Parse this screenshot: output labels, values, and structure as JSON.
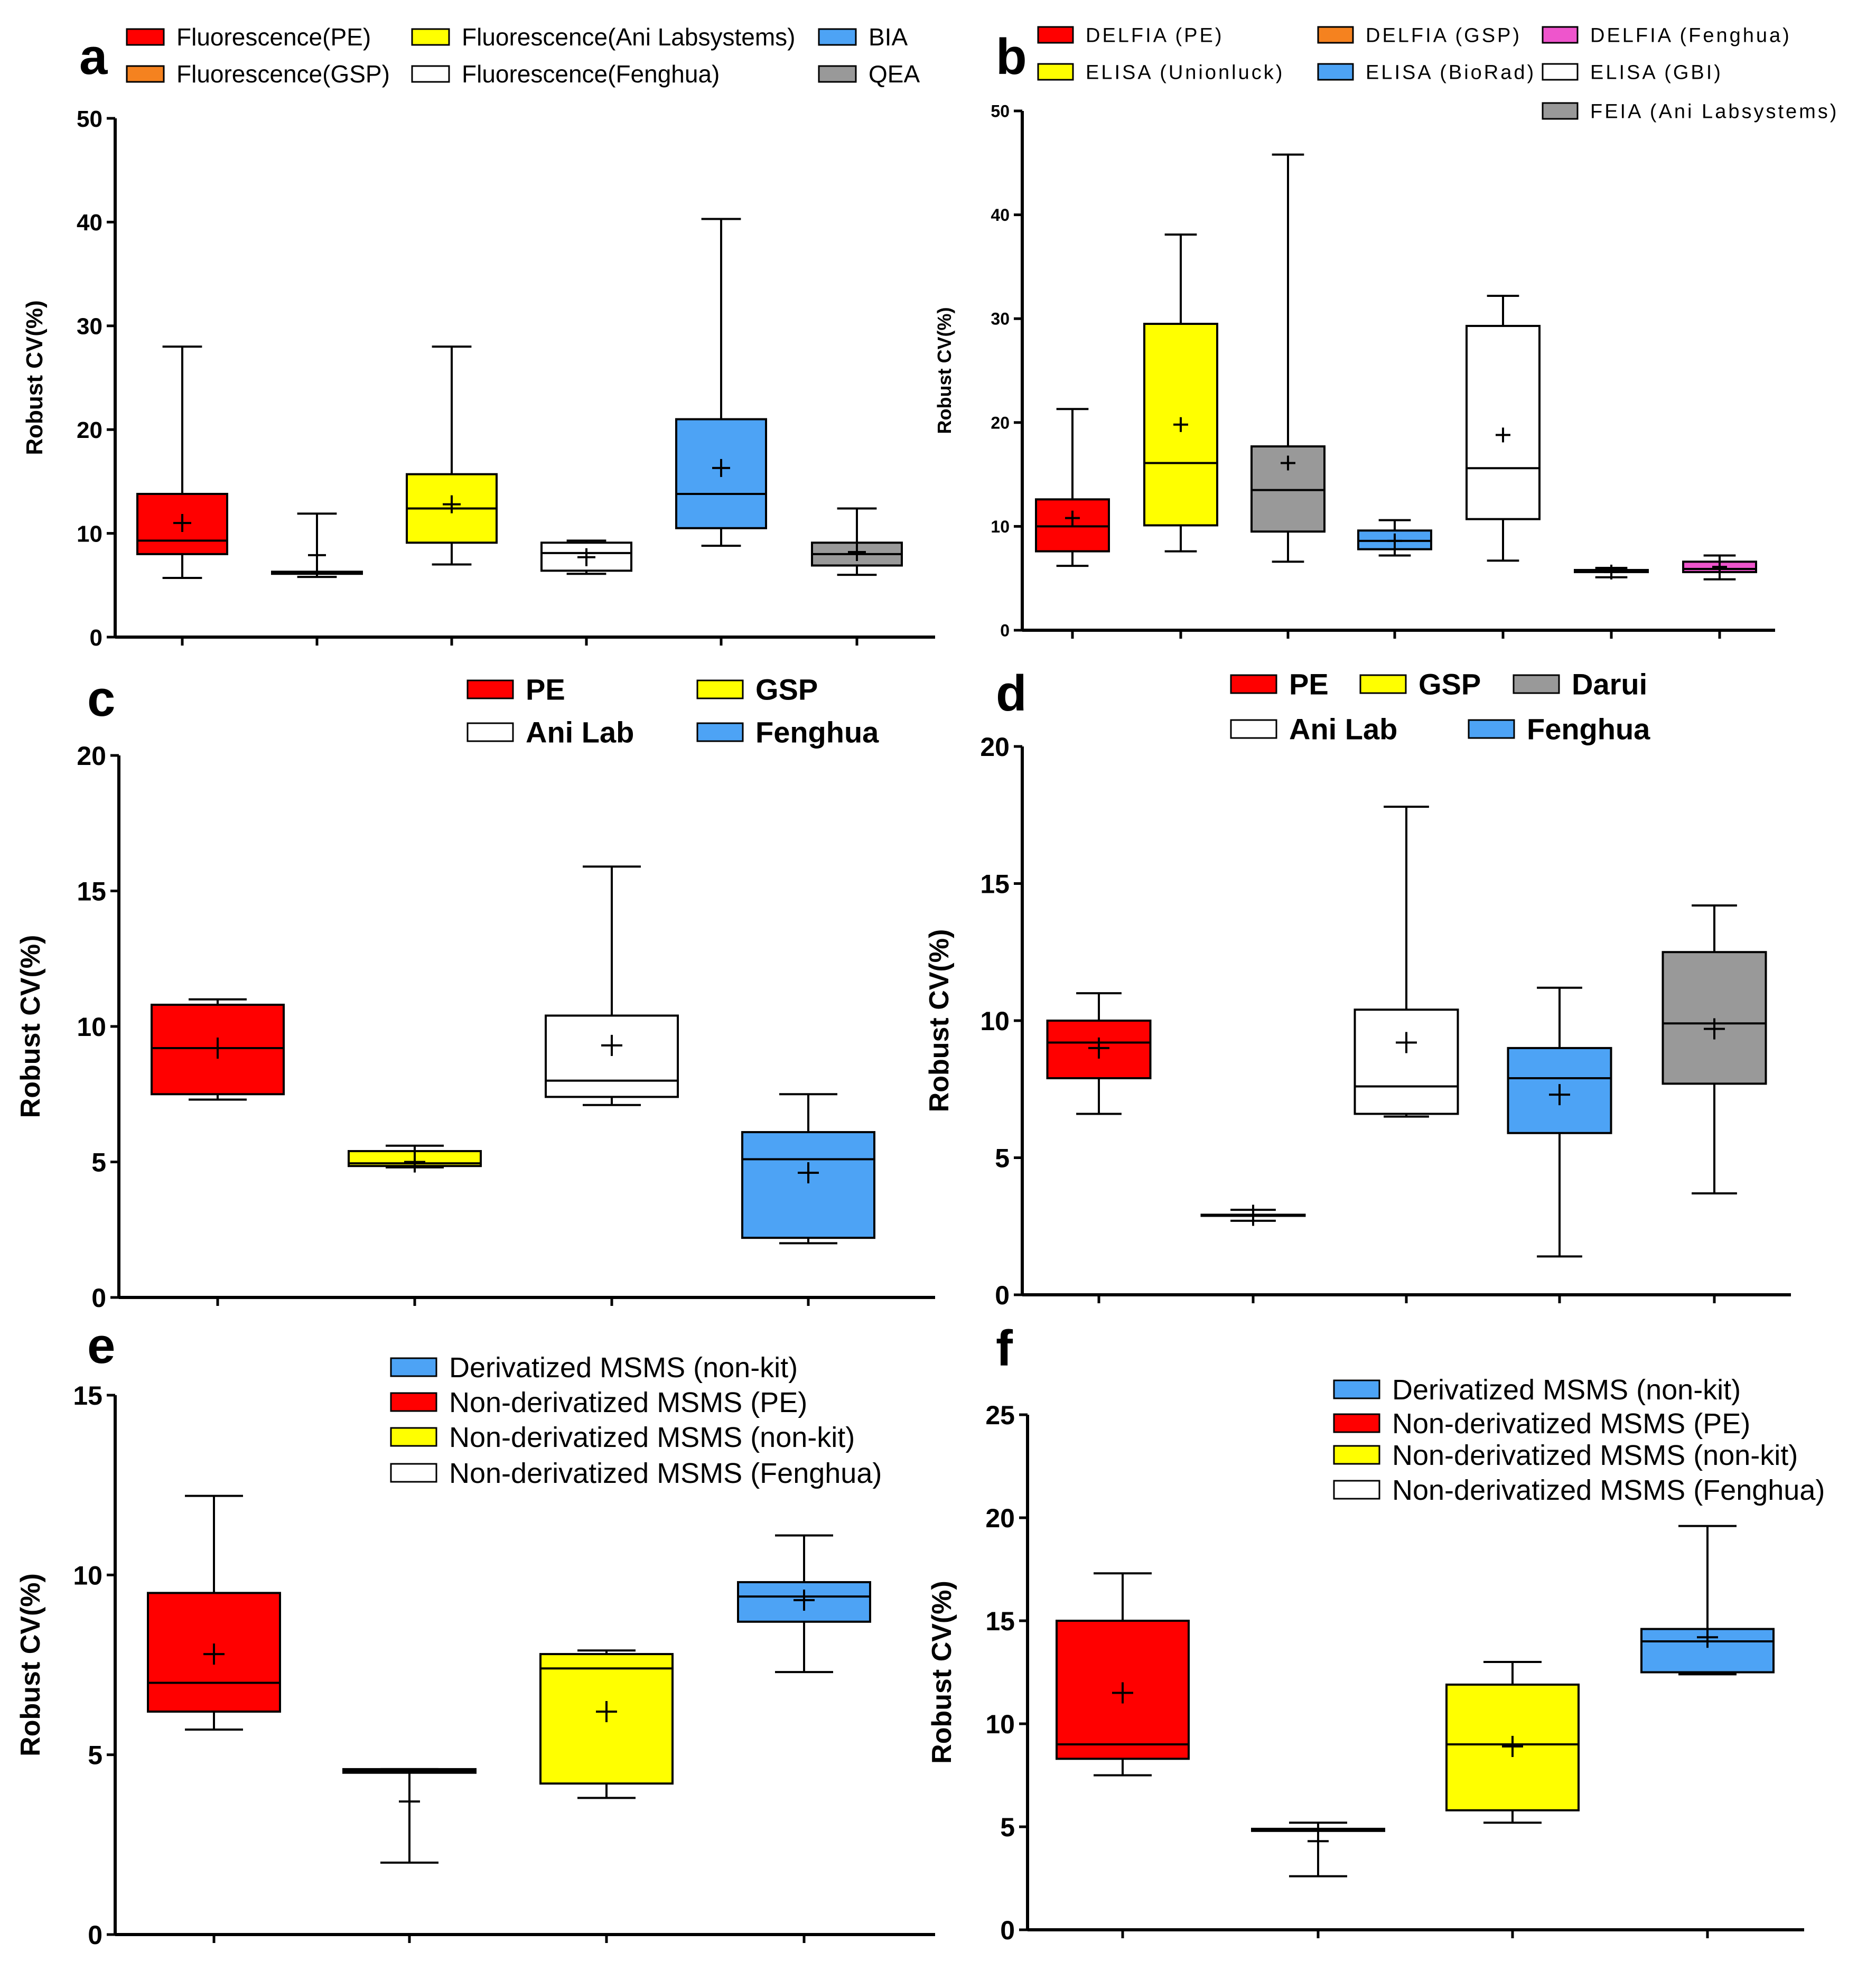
{
  "colors": {
    "red": "#ff0000",
    "orange": "#f5821f",
    "yellow": "#ffff00",
    "white": "#ffffff",
    "blue": "#4da3f5",
    "grey": "#999999",
    "magenta": "#ee55cc"
  },
  "chart_data": [
    {
      "panel": "a",
      "type": "box",
      "ylabel": "Robust CV(%)",
      "ylim": [
        0,
        50
      ],
      "yticks": [
        0,
        10,
        20,
        30,
        40,
        50
      ],
      "legend": [
        {
          "label": "Fluorescence(PE)",
          "color": "red"
        },
        {
          "label": "Fluorescence(Ani Labsystems)",
          "color": "yellow"
        },
        {
          "label": "BIA",
          "color": "blue"
        },
        {
          "label": "Fluorescence(GSP)",
          "color": "orange"
        },
        {
          "label": "Fluorescence(Fenghua)",
          "color": "white"
        },
        {
          "label": "QEA",
          "color": "grey"
        }
      ],
      "series": [
        {
          "name": "Fluorescence(PE)",
          "color": "red",
          "min": 5.7,
          "q1": 8.0,
          "median": 9.3,
          "q3": 13.8,
          "max": 28.0,
          "mean": 11.0
        },
        {
          "name": "Fluorescence(GSP)",
          "color": "orange",
          "min": 5.8,
          "q1": 6.1,
          "median": 6.2,
          "q3": 6.3,
          "max": 11.9,
          "mean": 7.9
        },
        {
          "name": "Fluorescence(Ani Labsystems)",
          "color": "yellow",
          "min": 7.0,
          "q1": 9.1,
          "median": 12.4,
          "q3": 15.7,
          "max": 28.0,
          "mean": 12.8
        },
        {
          "name": "Fluorescence(Fenghua)",
          "color": "white",
          "min": 6.1,
          "q1": 6.4,
          "median": 8.1,
          "q3": 9.1,
          "max": 9.3,
          "mean": 7.7
        },
        {
          "name": "BIA",
          "color": "blue",
          "min": 8.8,
          "q1": 10.5,
          "median": 13.8,
          "q3": 21.0,
          "max": 40.3,
          "mean": 16.3
        },
        {
          "name": "QEA",
          "color": "grey",
          "min": 6.0,
          "q1": 6.9,
          "median": 8.0,
          "q3": 9.1,
          "max": 12.4,
          "mean": 8.2
        }
      ]
    },
    {
      "panel": "b",
      "type": "box",
      "ylabel": "Robust CV(%)",
      "ylim": [
        0,
        50
      ],
      "yticks": [
        0,
        10,
        20,
        30,
        40,
        50
      ],
      "legend": [
        {
          "label": "DELFIA (PE)",
          "color": "red"
        },
        {
          "label": "DELFIA (GSP)",
          "color": "orange"
        },
        {
          "label": "DELFIA (Fenghua)",
          "color": "magenta"
        },
        {
          "label": "ELISA (Unionluck)",
          "color": "yellow"
        },
        {
          "label": "ELISA (BioRad)",
          "color": "blue"
        },
        {
          "label": "ELISA (GBI)",
          "color": "white"
        },
        {
          "label": "FEIA (Ani Labsystems)",
          "color": "grey"
        }
      ],
      "series": [
        {
          "name": "DELFIA (PE)",
          "color": "red",
          "min": 6.2,
          "q1": 7.6,
          "median": 10.0,
          "q3": 12.6,
          "max": 21.3,
          "mean": 10.8
        },
        {
          "name": "ELISA (Unionluck)",
          "color": "yellow",
          "min": 7.6,
          "q1": 10.1,
          "median": 16.1,
          "q3": 29.5,
          "max": 38.1,
          "mean": 19.8
        },
        {
          "name": "FEIA (Ani Labsystems)",
          "color": "grey",
          "min": 6.6,
          "q1": 9.5,
          "median": 13.5,
          "q3": 17.7,
          "max": 45.8,
          "mean": 16.1
        },
        {
          "name": "ELISA (BioRad)",
          "color": "blue",
          "min": 7.2,
          "q1": 7.8,
          "median": 8.6,
          "q3": 9.6,
          "max": 10.6,
          "mean": 8.6
        },
        {
          "name": "ELISA (GBI)",
          "color": "white",
          "min": 6.7,
          "q1": 10.7,
          "median": 15.6,
          "q3": 29.3,
          "max": 32.2,
          "mean": 18.8
        },
        {
          "name": "DELFIA (GSP)",
          "color": "orange",
          "min": 5.1,
          "q1": 5.6,
          "median": 5.7,
          "q3": 5.8,
          "max": 6.0,
          "mean": 5.6
        },
        {
          "name": "DELFIA (Fenghua)",
          "color": "magenta",
          "min": 4.9,
          "q1": 5.6,
          "median": 5.9,
          "q3": 6.6,
          "max": 7.2,
          "mean": 6.1
        }
      ]
    },
    {
      "panel": "c",
      "type": "box",
      "ylabel": "Robust CV(%)",
      "ylim": [
        0,
        20
      ],
      "yticks": [
        0,
        5,
        10,
        15,
        20
      ],
      "legend": [
        {
          "label": "PE",
          "color": "red"
        },
        {
          "label": "GSP",
          "color": "yellow"
        },
        {
          "label": "Ani Lab",
          "color": "white"
        },
        {
          "label": "Fenghua",
          "color": "blue"
        }
      ],
      "series": [
        {
          "name": "PE",
          "color": "red",
          "min": 7.3,
          "q1": 7.5,
          "median": 9.2,
          "q3": 10.8,
          "max": 11.0,
          "mean": 9.2
        },
        {
          "name": "GSP",
          "color": "yellow",
          "min": 4.8,
          "q1": 4.85,
          "median": 4.95,
          "q3": 5.4,
          "max": 5.6,
          "mean": 5.0
        },
        {
          "name": "Ani Lab",
          "color": "white",
          "min": 7.1,
          "q1": 7.4,
          "median": 8.0,
          "q3": 10.4,
          "max": 15.9,
          "mean": 9.3
        },
        {
          "name": "Fenghua",
          "color": "blue",
          "min": 2.0,
          "q1": 2.2,
          "median": 5.1,
          "q3": 6.1,
          "max": 7.5,
          "mean": 4.6
        }
      ]
    },
    {
      "panel": "d",
      "type": "box",
      "ylabel": "Robust CV(%)",
      "ylim": [
        0,
        20
      ],
      "yticks": [
        0,
        5,
        10,
        15,
        20
      ],
      "legend": [
        {
          "label": "PE",
          "color": "red"
        },
        {
          "label": "GSP",
          "color": "yellow"
        },
        {
          "label": "Darui",
          "color": "grey"
        },
        {
          "label": "Ani Lab",
          "color": "white"
        },
        {
          "label": "Fenghua",
          "color": "blue"
        }
      ],
      "series": [
        {
          "name": "PE",
          "color": "red",
          "min": 6.6,
          "q1": 7.9,
          "median": 9.2,
          "q3": 10.0,
          "max": 11.0,
          "mean": 9.0
        },
        {
          "name": "GSP",
          "color": "yellow",
          "min": 2.7,
          "q1": 2.88,
          "median": 2.9,
          "q3": 2.92,
          "max": 3.1,
          "mean": 2.9
        },
        {
          "name": "Ani Lab",
          "color": "white",
          "min": 6.5,
          "q1": 6.6,
          "median": 7.6,
          "q3": 10.4,
          "max": 17.8,
          "mean": 9.2
        },
        {
          "name": "Fenghua",
          "color": "blue",
          "min": 1.4,
          "q1": 5.9,
          "median": 7.9,
          "q3": 9.0,
          "max": 11.2,
          "mean": 7.3
        },
        {
          "name": "Darui",
          "color": "grey",
          "min": 3.7,
          "q1": 7.7,
          "median": 9.9,
          "q3": 12.5,
          "max": 14.2,
          "mean": 9.7
        }
      ]
    },
    {
      "panel": "e",
      "type": "box",
      "ylabel": "Robust CV(%)",
      "ylim": [
        0,
        15
      ],
      "yticks": [
        0,
        5,
        10,
        15
      ],
      "legend": [
        {
          "label": "Derivatized  MSMS (non-kit)",
          "color": "blue"
        },
        {
          "label": "Non-derivatized  MSMS (PE)",
          "color": "red"
        },
        {
          "label": "Non-derivatized  MSMS (non-kit)",
          "color": "yellow"
        },
        {
          "label": "Non-derivatized  MSMS (Fenghua)",
          "color": "white"
        }
      ],
      "series": [
        {
          "name": "Non-derivatized MSMS (PE)",
          "color": "red",
          "min": 5.7,
          "q1": 6.2,
          "median": 7.0,
          "q3": 9.5,
          "max": 12.2,
          "mean": 7.8
        },
        {
          "name": "Non-derivatized MSMS (Fenghua)",
          "color": "white",
          "min": 2.0,
          "q1": 4.5,
          "median": 4.55,
          "q3": 4.6,
          "max": 4.6,
          "mean": 3.7
        },
        {
          "name": "Non-derivatized MSMS (non-kit)",
          "color": "yellow",
          "min": 3.8,
          "q1": 4.2,
          "median": 7.4,
          "q3": 7.8,
          "max": 7.9,
          "mean": 6.2
        },
        {
          "name": "Derivatized MSMS (non-kit)",
          "color": "blue",
          "min": 7.3,
          "q1": 8.7,
          "median": 9.4,
          "q3": 9.8,
          "max": 11.1,
          "mean": 9.3
        }
      ]
    },
    {
      "panel": "f",
      "type": "box",
      "ylabel": "Robust CV(%)",
      "ylim": [
        0,
        25
      ],
      "yticks": [
        0,
        5,
        10,
        15,
        20,
        25
      ],
      "legend": [
        {
          "label": "Derivatized  MSMS (non-kit)",
          "color": "blue"
        },
        {
          "label": "Non-derivatized  MSMS (PE)",
          "color": "red"
        },
        {
          "label": "Non-derivatized  MSMS (non-kit)",
          "color": "yellow"
        },
        {
          "label": "Non-derivatized  MSMS (Fenghua)",
          "color": "white"
        }
      ],
      "series": [
        {
          "name": "Non-derivatized MSMS (PE)",
          "color": "red",
          "min": 7.5,
          "q1": 8.3,
          "median": 9.0,
          "q3": 15.0,
          "max": 17.3,
          "mean": 11.5
        },
        {
          "name": "Non-derivatized MSMS (Fenghua)",
          "color": "white",
          "min": 2.6,
          "q1": 4.8,
          "median": 4.85,
          "q3": 4.9,
          "max": 5.2,
          "mean": 4.3
        },
        {
          "name": "Non-derivatized MSMS (non-kit)",
          "color": "yellow",
          "min": 5.2,
          "q1": 5.8,
          "median": 9.0,
          "q3": 11.9,
          "max": 13.0,
          "mean": 8.9
        },
        {
          "name": "Derivatized MSMS (non-kit)",
          "color": "blue",
          "min": 12.4,
          "q1": 12.5,
          "median": 14.0,
          "q3": 14.6,
          "max": 19.6,
          "mean": 14.2
        }
      ]
    }
  ]
}
